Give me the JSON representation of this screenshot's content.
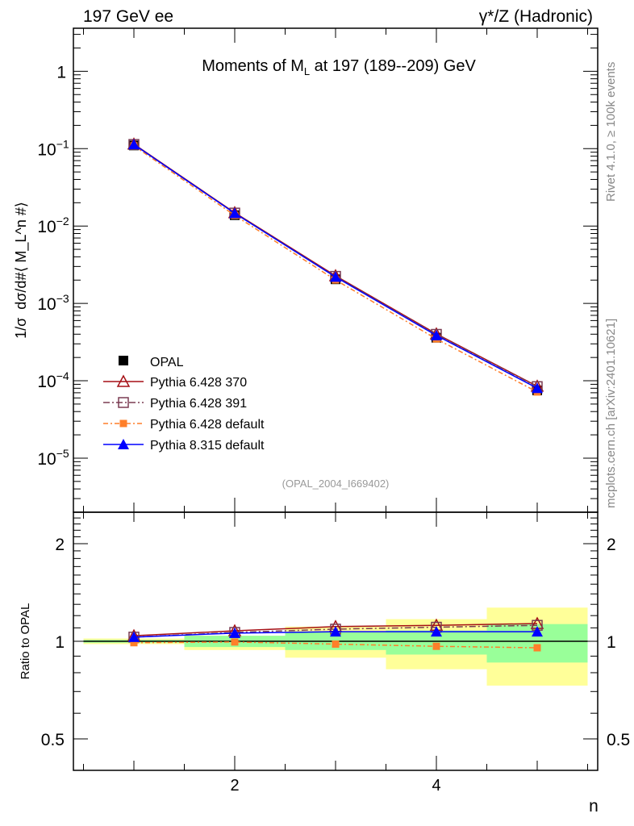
{
  "header": {
    "left": "197 GeV ee",
    "right": "γ*/Z (Hadronic)"
  },
  "side": {
    "rivet": "Rivet 4.1.0, ≥ 100k events",
    "site": "mcplots.cern.ch [arXiv:2401.10621]"
  },
  "chart_data": [
    {
      "type": "line",
      "title": "Moments of M_L at 197 (189--209) GeV",
      "ylabel": "1/σ  dσ/d#⟨ M_L^n #⟩",
      "xlabel": "n",
      "yscale": "log",
      "ylim": [
        2e-06,
        3.6
      ],
      "xlim": [
        0.4,
        5.6
      ],
      "yticks": [
        {
          "v": 1,
          "label": "1"
        },
        {
          "v": 0.1,
          "label": "10",
          "exp": "−1"
        },
        {
          "v": 0.01,
          "label": "10",
          "exp": "−2"
        },
        {
          "v": 0.001,
          "label": "10",
          "exp": "−3"
        },
        {
          "v": 0.0001,
          "label": "10",
          "exp": "−4"
        },
        {
          "v": 1e-05,
          "label": "10",
          "exp": "−5"
        }
      ],
      "watermark": "(OPAL_2004_I669402)",
      "legend_position": "bottom-left",
      "x": [
        1,
        2,
        3,
        4,
        5
      ],
      "data": {
        "name": "OPAL",
        "values": [
          0.11,
          0.0138,
          0.00205,
          0.00036,
          7.5e-05
        ]
      },
      "series": [
        {
          "name": "Pythia 6.428 370",
          "color": "#a50f15",
          "ratio": [
            1.04,
            1.077,
            1.11,
            1.12,
            1.134
          ]
        },
        {
          "name": "Pythia 6.428 391",
          "color": "#7a3b52",
          "ratio": [
            1.03,
            1.065,
            1.09,
            1.105,
            1.12
          ]
        },
        {
          "name": "Pythia 6.428 default",
          "color": "#ff7f2a",
          "ratio": [
            0.99,
            0.995,
            0.98,
            0.965,
            0.955
          ]
        },
        {
          "name": "Pythia 8.315 default",
          "color": "#0000ff",
          "ratio": [
            1.03,
            1.06,
            1.07,
            1.07,
            1.07
          ]
        }
      ]
    },
    {
      "type": "line",
      "ylabel": "Ratio to OPAL",
      "yscale": "log",
      "ylim": [
        0.4,
        2.5
      ],
      "yticks": [
        {
          "v": 0.5,
          "label": "0.5"
        },
        {
          "v": 1,
          "label": "1"
        },
        {
          "v": 2,
          "label": "2"
        }
      ],
      "xticks": [
        {
          "v": 2,
          "label": "2"
        },
        {
          "v": 4,
          "label": "4"
        }
      ],
      "bands": {
        "stat": [
          [
            0.99,
            1.01
          ],
          [
            0.96,
            1.04
          ],
          [
            0.94,
            1.065
          ],
          [
            0.91,
            1.08
          ],
          [
            0.86,
            1.13
          ]
        ],
        "total": [
          [
            0.98,
            1.02
          ],
          [
            0.94,
            1.04
          ],
          [
            0.89,
            1.11
          ],
          [
            0.82,
            1.17
          ],
          [
            0.73,
            1.27
          ]
        ]
      }
    }
  ]
}
